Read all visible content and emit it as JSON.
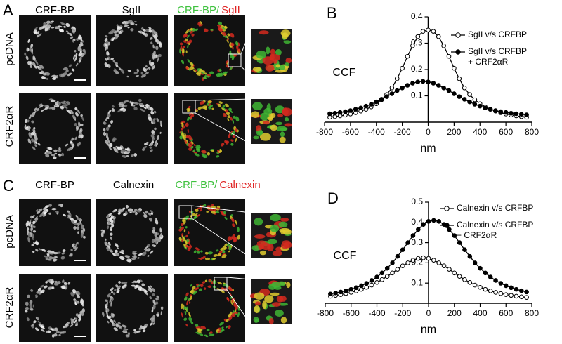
{
  "panels": [
    {
      "label": "A",
      "columns": [
        "CRF-BP",
        "SgII"
      ],
      "merge": [
        "CRF-BP/",
        "SgII"
      ],
      "rows": [
        "pcDNA",
        "CRF2αR"
      ]
    },
    {
      "label": "C",
      "columns": [
        "CRF-BP",
        "Calnexin"
      ],
      "merge": [
        "CRF-BP/",
        "Calnexin"
      ],
      "rows": [
        "pcDNA",
        "CRF2αR"
      ]
    }
  ],
  "chart_data": [
    {
      "type": "line",
      "label": "B",
      "xlabel": "nm",
      "ylabel": "CCF",
      "x": [
        -760,
        -720,
        -680,
        -640,
        -600,
        -560,
        -520,
        -480,
        -440,
        -400,
        -360,
        -320,
        -280,
        -240,
        -200,
        -160,
        -120,
        -80,
        -40,
        0,
        40,
        80,
        120,
        160,
        200,
        240,
        280,
        320,
        360,
        400,
        440,
        480,
        520,
        560,
        600,
        640,
        680,
        720,
        760
      ],
      "xlim": [
        -800,
        800
      ],
      "xticks": [
        -800,
        -600,
        -400,
        -200,
        0,
        200,
        400,
        600,
        800
      ],
      "ylim": [
        0,
        0.4
      ],
      "yticks": [
        0.1,
        0.2,
        0.3,
        0.4
      ],
      "series": [
        {
          "name": "SgII v/s CRFBP",
          "color": "#000000",
          "marker": "open",
          "values": [
            0.019,
            0.021,
            0.024,
            0.027,
            0.031,
            0.036,
            0.042,
            0.049,
            0.058,
            0.07,
            0.085,
            0.105,
            0.13,
            0.165,
            0.205,
            0.25,
            0.29,
            0.325,
            0.345,
            0.35,
            0.345,
            0.325,
            0.29,
            0.25,
            0.205,
            0.165,
            0.13,
            0.105,
            0.085,
            0.07,
            0.058,
            0.049,
            0.042,
            0.036,
            0.031,
            0.027,
            0.024,
            0.021,
            0.019
          ]
        },
        {
          "name": "SgII v/s CRFBP + CRF2αR",
          "color": "#000000",
          "marker": "filled",
          "values": [
            0.032,
            0.034,
            0.037,
            0.04,
            0.044,
            0.049,
            0.054,
            0.061,
            0.068,
            0.077,
            0.087,
            0.097,
            0.108,
            0.12,
            0.13,
            0.14,
            0.148,
            0.153,
            0.155,
            0.153,
            0.148,
            0.14,
            0.13,
            0.12,
            0.108,
            0.097,
            0.087,
            0.077,
            0.068,
            0.061,
            0.054,
            0.049,
            0.044,
            0.04,
            0.037,
            0.034,
            0.032,
            0.03,
            0.028
          ]
        }
      ]
    },
    {
      "type": "line",
      "label": "D",
      "xlabel": "nm",
      "ylabel": "CCF",
      "x": [
        -760,
        -720,
        -680,
        -640,
        -600,
        -560,
        -520,
        -480,
        -440,
        -400,
        -360,
        -320,
        -280,
        -240,
        -200,
        -160,
        -120,
        -80,
        -40,
        0,
        40,
        80,
        120,
        160,
        200,
        240,
        280,
        320,
        360,
        400,
        440,
        480,
        520,
        560,
        600,
        640,
        680,
        720,
        760
      ],
      "xlim": [
        -800,
        800
      ],
      "xticks": [
        -800,
        -600,
        -400,
        -200,
        0,
        200,
        400,
        600,
        800
      ],
      "ylim": [
        0,
        0.5
      ],
      "yticks": [
        0.1,
        0.2,
        0.3,
        0.4,
        0.5
      ],
      "series": [
        {
          "name": "Calnexin v/s CRFBP",
          "color": "#000000",
          "marker": "open",
          "values": [
            0.035,
            0.039,
            0.043,
            0.048,
            0.054,
            0.061,
            0.069,
            0.079,
            0.09,
            0.103,
            0.117,
            0.133,
            0.15,
            0.168,
            0.185,
            0.2,
            0.213,
            0.222,
            0.225,
            0.222,
            0.213,
            0.2,
            0.185,
            0.168,
            0.15,
            0.133,
            0.117,
            0.103,
            0.09,
            0.079,
            0.069,
            0.061,
            0.054,
            0.048,
            0.043,
            0.039,
            0.035,
            0.032,
            0.029
          ]
        },
        {
          "name": "Calnexin v/s CRFBP + CRF2αR",
          "color": "#000000",
          "marker": "filled",
          "values": [
            0.046,
            0.051,
            0.056,
            0.062,
            0.069,
            0.077,
            0.087,
            0.099,
            0.113,
            0.13,
            0.15,
            0.173,
            0.2,
            0.232,
            0.265,
            0.3,
            0.335,
            0.365,
            0.39,
            0.405,
            0.41,
            0.405,
            0.39,
            0.365,
            0.335,
            0.3,
            0.265,
            0.232,
            0.2,
            0.173,
            0.15,
            0.13,
            0.113,
            0.099,
            0.087,
            0.077,
            0.069,
            0.062,
            0.056
          ]
        }
      ]
    }
  ]
}
